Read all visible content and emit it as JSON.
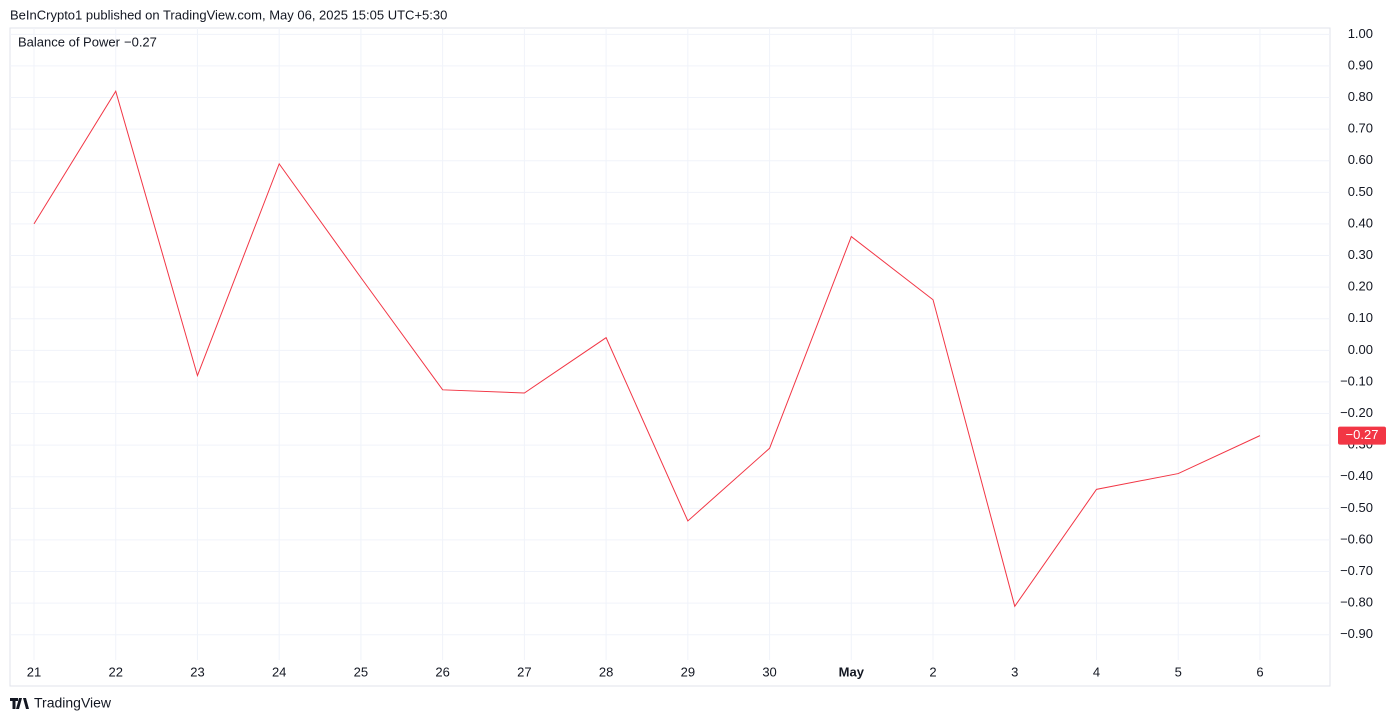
{
  "header": "BeInCrypto1 published on TradingView.com, May 06, 2025 15:05 UTC+5:30",
  "footer": "TradingView",
  "chart_data": {
    "type": "line",
    "categories": [
      "21",
      "22",
      "23",
      "24",
      "25",
      "26",
      "27",
      "28",
      "29",
      "30",
      "May",
      "2",
      "3",
      "4",
      "5",
      "6"
    ],
    "series": [
      {
        "name": "Balance of Power",
        "color": "#f23645",
        "last_label": "−0.27",
        "values": [
          0.4,
          0.82,
          -0.08,
          0.59,
          0.23,
          -0.125,
          -0.135,
          0.04,
          -0.54,
          -0.31,
          0.36,
          0.16,
          -0.81,
          -0.44,
          -0.39,
          -0.27
        ]
      }
    ],
    "ylim": [
      -0.98,
      1.02
    ],
    "yticks": [
      {
        "value": -0.9,
        "label": "−0.90"
      },
      {
        "value": -0.8,
        "label": "−0.80"
      },
      {
        "value": -0.7,
        "label": "−0.70"
      },
      {
        "value": -0.6,
        "label": "−0.60"
      },
      {
        "value": -0.5,
        "label": "−0.50"
      },
      {
        "value": -0.4,
        "label": "−0.40"
      },
      {
        "value": -0.3,
        "label": "−0.30"
      },
      {
        "value": -0.2,
        "label": "−0.20"
      },
      {
        "value": -0.1,
        "label": "−0.10"
      },
      {
        "value": 0,
        "label": "0.00"
      },
      {
        "value": 0.1,
        "label": "0.10"
      },
      {
        "value": 0.2,
        "label": "0.20"
      },
      {
        "value": 0.3,
        "label": "0.30"
      },
      {
        "value": 0.4,
        "label": "0.40"
      },
      {
        "value": 0.5,
        "label": "0.50"
      },
      {
        "value": 0.6,
        "label": "0.60"
      },
      {
        "value": 0.7,
        "label": "0.70"
      },
      {
        "value": 0.8,
        "label": "0.80"
      },
      {
        "value": 0.9,
        "label": "0.90"
      },
      {
        "value": 1,
        "label": "1.00"
      }
    ],
    "grid": true
  }
}
